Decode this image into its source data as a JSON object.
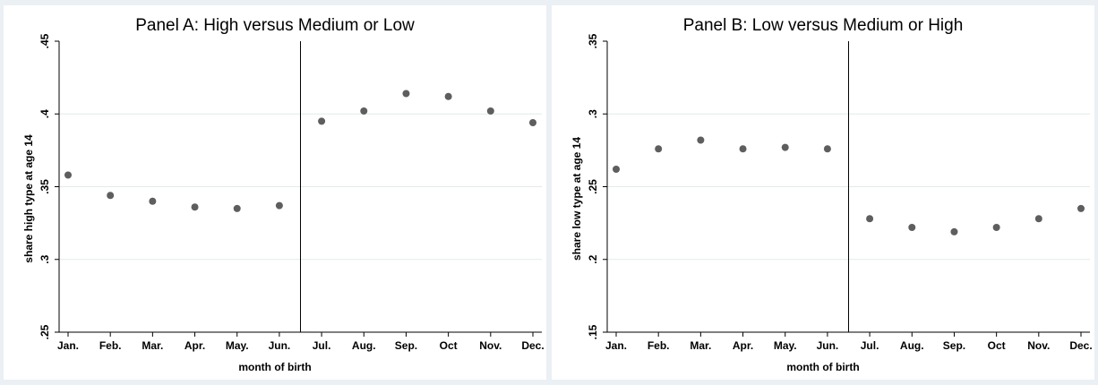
{
  "chart_data": [
    {
      "type": "scatter",
      "title": "Panel A: High versus Medium or Low",
      "xlabel": "month of birth",
      "ylabel": "share high type at age 14",
      "categories": [
        "Jan.",
        "Feb.",
        "Mar.",
        "Apr.",
        "May.",
        "Jun.",
        "Jul.",
        "Aug.",
        "Sep.",
        "Oct",
        "Nov.",
        "Dec."
      ],
      "values": [
        0.358,
        0.344,
        0.34,
        0.336,
        0.335,
        0.337,
        0.395,
        0.402,
        0.414,
        0.412,
        0.402,
        0.394
      ],
      "ylim": [
        0.25,
        0.45
      ],
      "yticks": [
        0.25,
        0.3,
        0.35,
        0.4,
        0.45
      ],
      "ytick_labels": [
        ".25",
        ".3",
        ".35",
        ".4",
        ".45"
      ],
      "cutoff_after": "Jun.",
      "grid": true,
      "marker_color": "#5e5e5e"
    },
    {
      "type": "scatter",
      "title": "Panel B: Low versus Medium or High",
      "xlabel": "month of birth",
      "ylabel": "share low type at age 14",
      "categories": [
        "Jan.",
        "Feb.",
        "Mar.",
        "Apr.",
        "May.",
        "Jun.",
        "Jul.",
        "Aug.",
        "Sep.",
        "Oct",
        "Nov.",
        "Dec."
      ],
      "values": [
        0.262,
        0.276,
        0.282,
        0.276,
        0.277,
        0.276,
        0.228,
        0.222,
        0.219,
        0.222,
        0.228,
        0.235
      ],
      "ylim": [
        0.15,
        0.35
      ],
      "yticks": [
        0.15,
        0.2,
        0.25,
        0.3,
        0.35
      ],
      "ytick_labels": [
        ".15",
        ".2",
        ".25",
        ".3",
        ".35"
      ],
      "cutoff_after": "Jun.",
      "grid": true,
      "marker_color": "#5e5e5e"
    }
  ]
}
